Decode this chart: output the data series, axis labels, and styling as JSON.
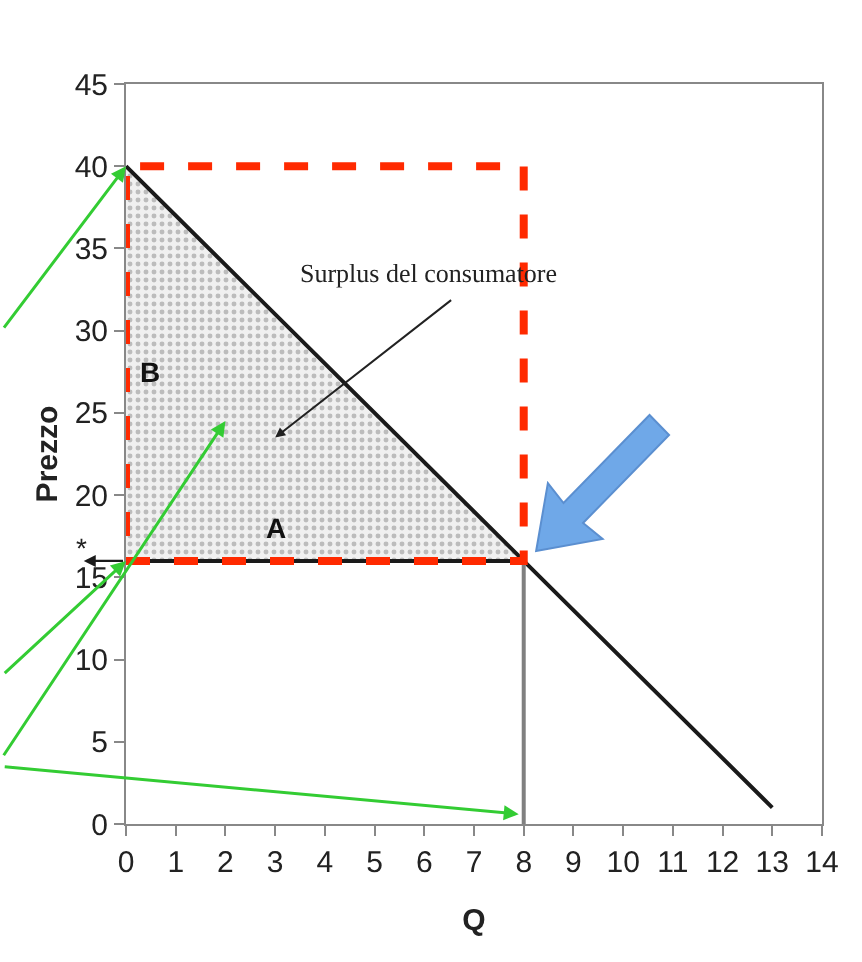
{
  "chart_data": {
    "type": "line",
    "xlabel": "Q",
    "ylabel": "Prezzo",
    "series": [
      {
        "x": [
          0,
          8
        ],
        "values": [
          16,
          16
        ],
        "color": "#1a1a1a"
      },
      {
        "type": "area",
        "x": [
          0,
          8
        ],
        "values": [
          40,
          16
        ],
        "color": "#c8c8c8"
      },
      {
        "x": [
          0,
          8,
          13
        ],
        "values": [
          40,
          16,
          1
        ],
        "color": "#1a1a1a"
      },
      {
        "x": [
          8,
          8
        ],
        "values": [
          0,
          16
        ],
        "color": "#808080"
      }
    ],
    "annotations": [
      "Surplus del consumatore",
      "A",
      "B",
      "*"
    ],
    "xlim": [
      0,
      14
    ],
    "xticks": [
      0,
      1,
      2,
      3,
      4,
      5,
      6,
      7,
      8,
      9,
      10,
      11,
      12,
      13,
      14
    ],
    "ylim": [
      0,
      45
    ],
    "yticks": [
      0,
      5,
      10,
      15,
      20,
      25,
      30,
      35,
      40,
      45
    ],
    "marker": "none"
  }
}
